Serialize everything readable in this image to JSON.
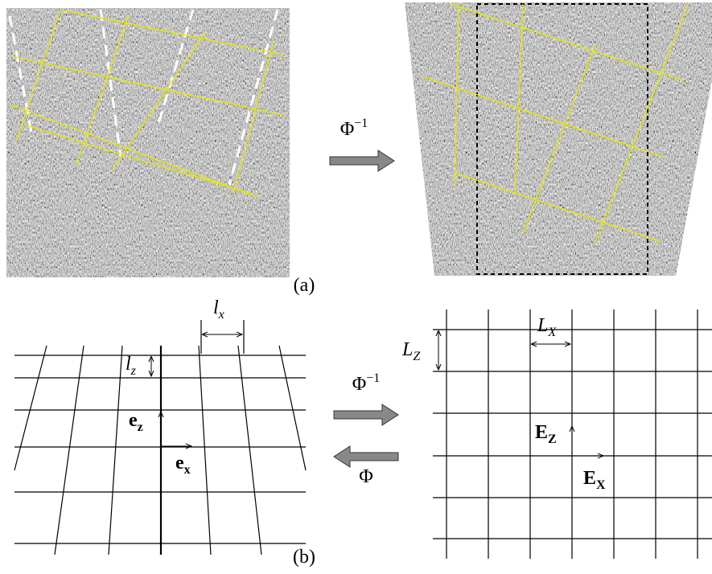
{
  "panel_a": {
    "arrow_label": {
      "base": "Φ",
      "sup": "−1"
    },
    "caption": "(a)"
  },
  "panel_b": {
    "lx": {
      "base": "l",
      "sub": "x"
    },
    "lz": {
      "base": "l",
      "sub": "z"
    },
    "ez": {
      "base": "e",
      "sub": "z"
    },
    "ex": {
      "base": "e",
      "sub": "x"
    },
    "arrow_inverse": {
      "base": "Φ",
      "sup": "−1"
    },
    "arrow_forward": "Φ",
    "LX": {
      "base": "L",
      "sub": "X"
    },
    "LZ": {
      "base": "L",
      "sub": "Z"
    },
    "EZ": {
      "base": "E",
      "sub": "Z"
    },
    "EX": {
      "base": "E",
      "sub": "X"
    },
    "caption": "(b)"
  }
}
